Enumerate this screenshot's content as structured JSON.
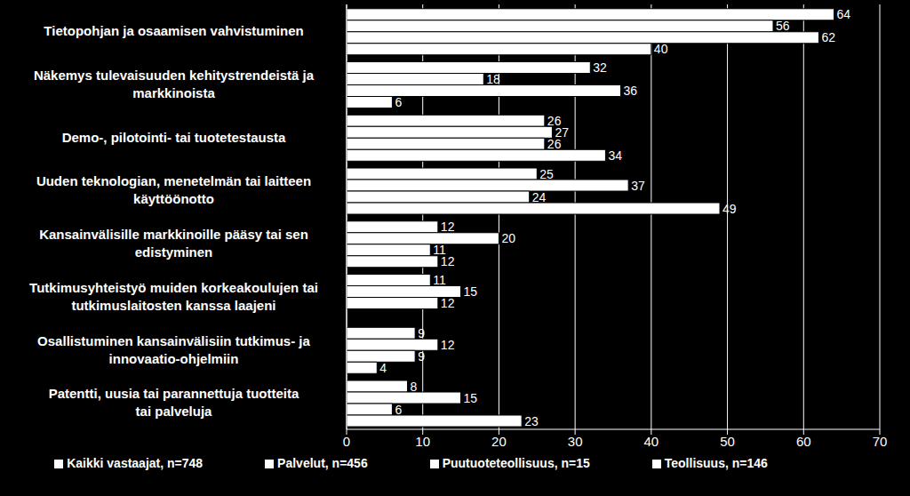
{
  "chart_data": {
    "type": "bar",
    "orientation": "horizontal",
    "categories": [
      "Tietopohjan ja osaamisen vahvistuminen",
      "Näkemys tulevaisuuden kehitystrendeistä ja markkinoista",
      "Demo-, pilotointi- tai tuotetestausta",
      "Uuden teknologian, menetelmän tai laitteen käyttöönotto",
      "Kansainvälisille markkinoille pääsy tai sen edistyminen",
      "Tutkimusyhteistyö muiden korkeakoulujen tai tutkimuslaitosten kanssa laajeni",
      "Osallistuminen kansainvälisiin tutkimus- ja innovaatio-ohjelmiin",
      "Patentti, uusia tai parannettuja tuotteita tai palveluja"
    ],
    "series": [
      {
        "name": "Kaikki vastaajat, n=748",
        "color": "#ffffff",
        "values": [
          64,
          32,
          26,
          25,
          12,
          11,
          9,
          8
        ]
      },
      {
        "name": "Teollisuus, n=146",
        "color": "#ffffff",
        "values": [
          56,
          18,
          27,
          37,
          20,
          15,
          12,
          15
        ]
      },
      {
        "name": "Palvelut, n=456",
        "color": "#ffffff",
        "values": [
          62,
          36,
          26,
          24,
          11,
          12,
          9,
          6
        ]
      },
      {
        "name": "Puutuoteteollisuus, n=15",
        "color": "#ffffff",
        "values": [
          40,
          6,
          34,
          49,
          12,
          0,
          4,
          23
        ]
      }
    ],
    "xlim": [
      0,
      70
    ],
    "xticks": [
      0,
      10,
      20,
      30,
      40,
      50,
      60,
      70
    ],
    "grid": true,
    "data_labels": true,
    "legend": "bottom"
  }
}
